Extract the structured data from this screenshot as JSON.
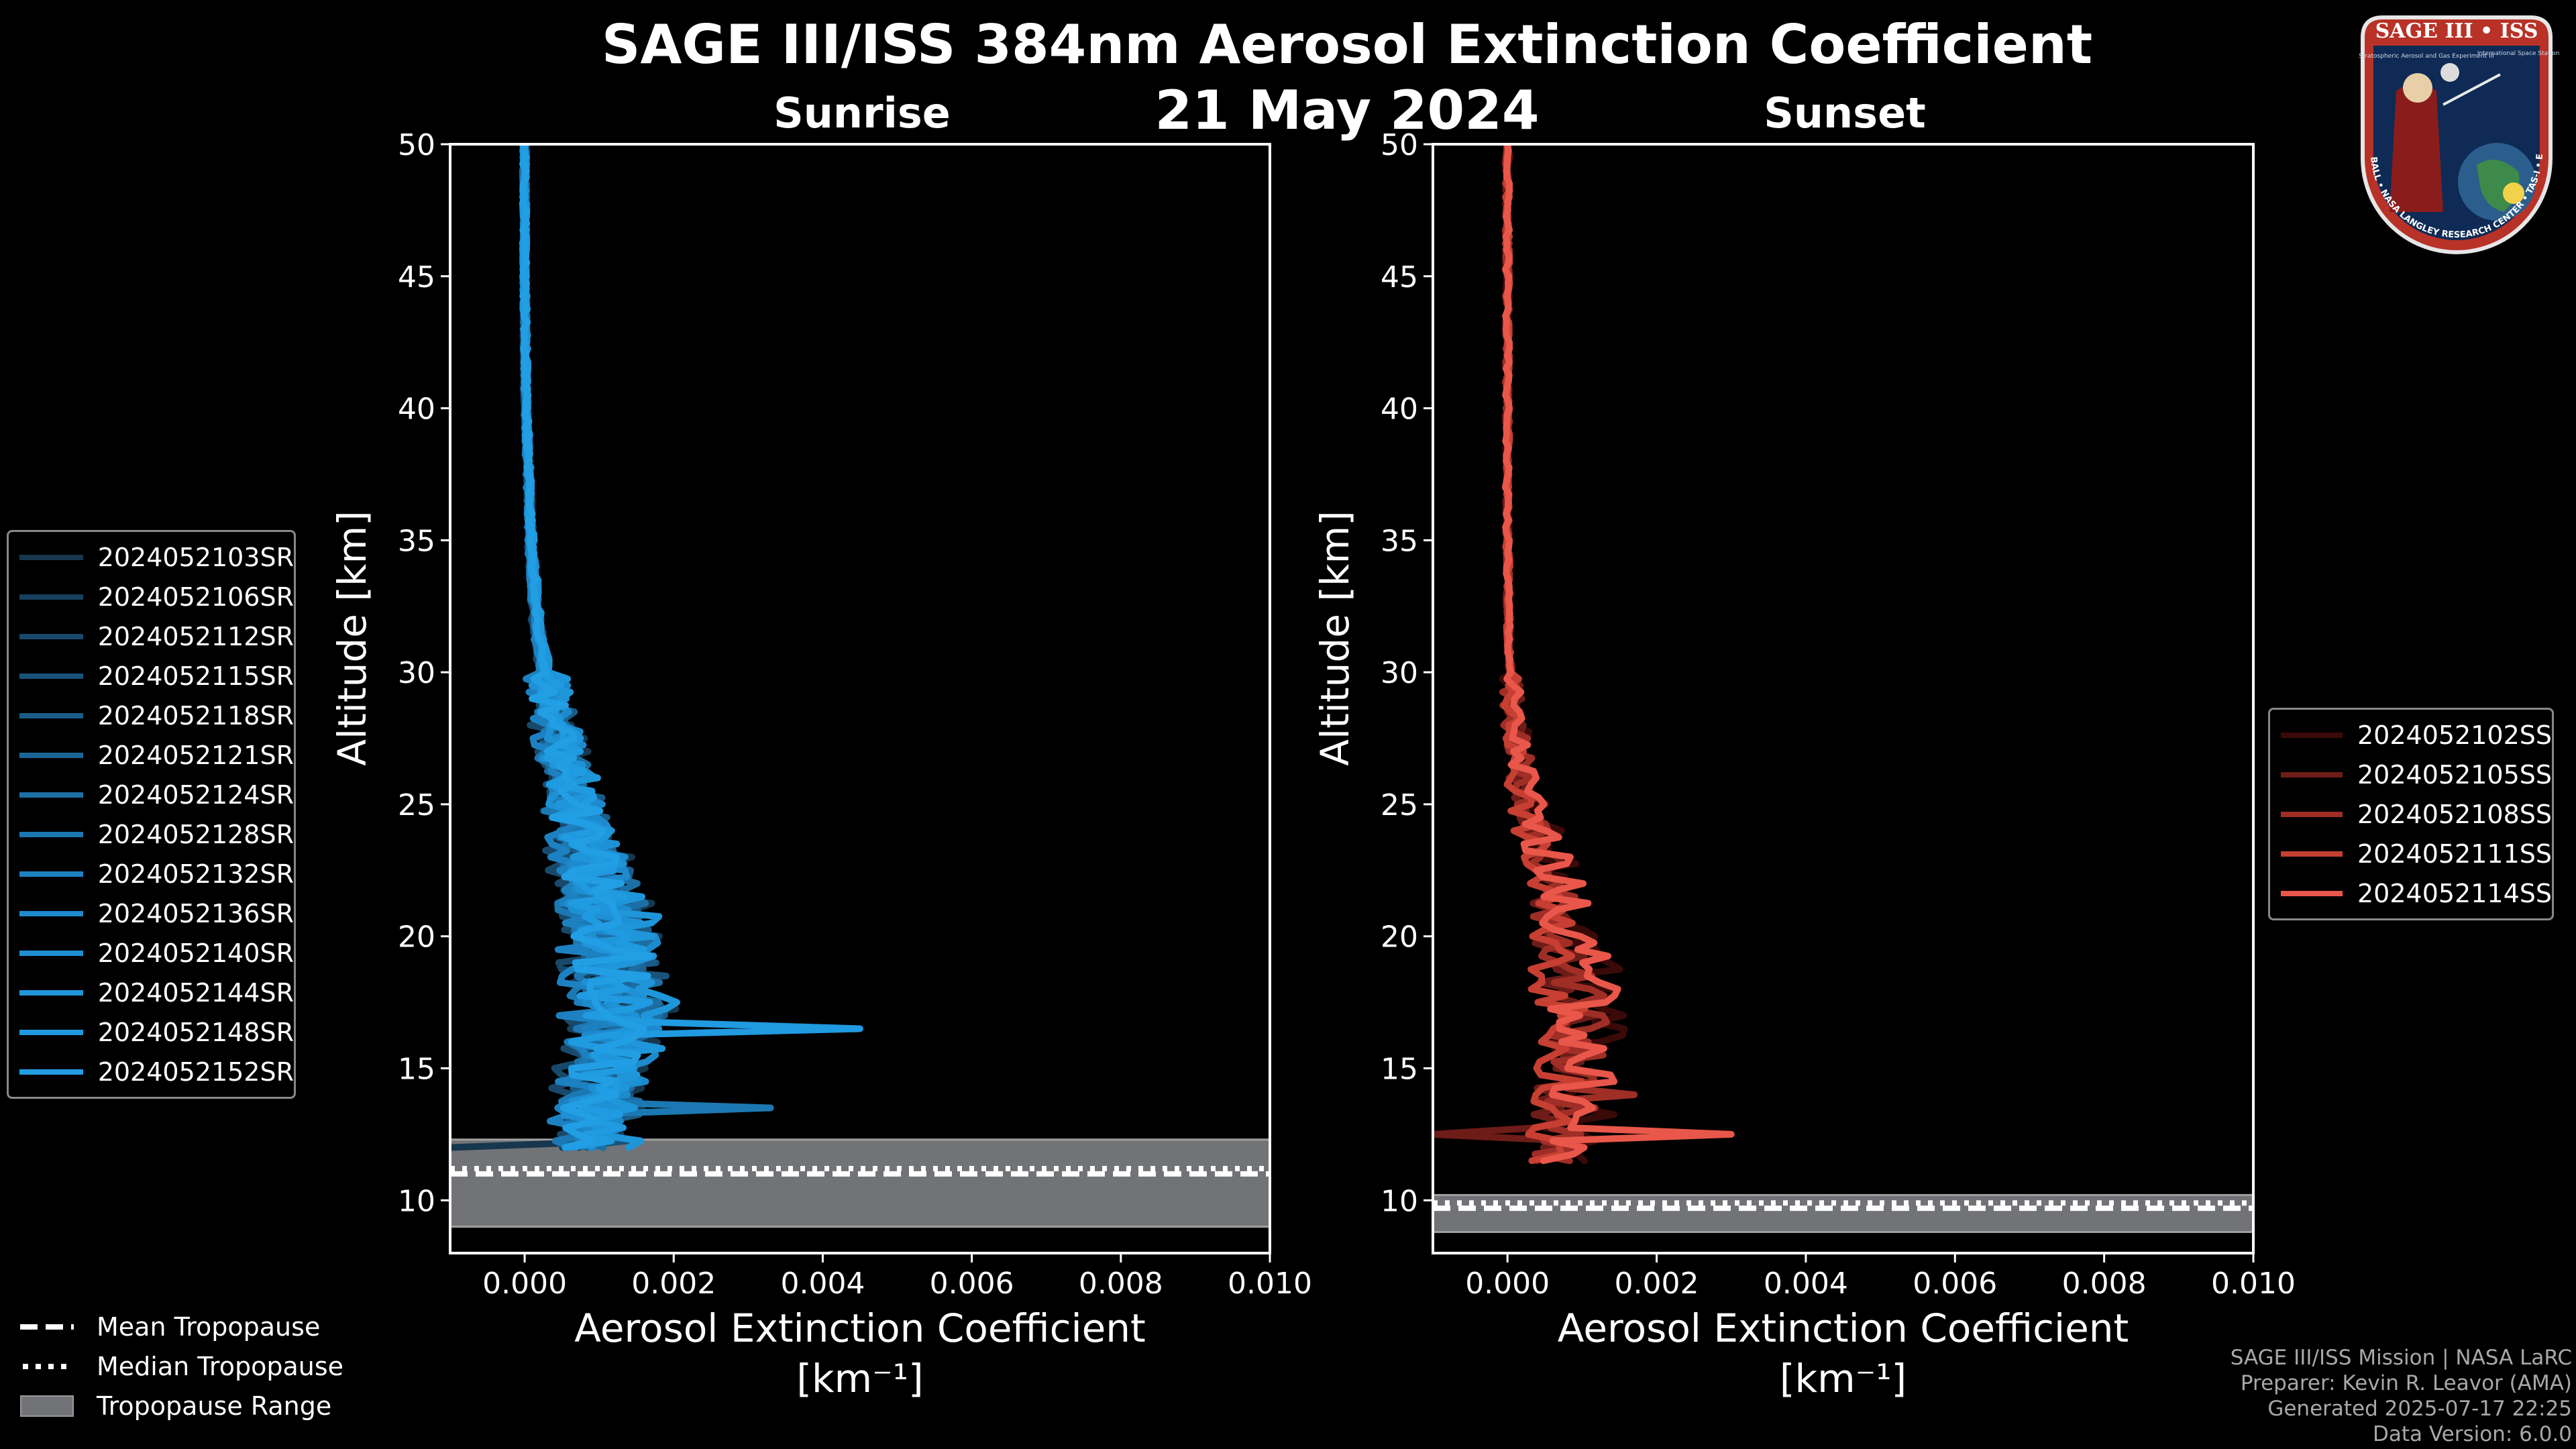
{
  "title_line1": "SAGE III/ISS 384nm Aerosol Extinction Coefficient",
  "title_line2": "21 May 2024",
  "footer": {
    "mission": "SAGE III/ISS Mission | NASA LaRC",
    "preparer": "Preparer: Kevin R. Leavor (AMA)",
    "generated": "Generated 2025-07-17 22:25",
    "version": "Data Version: 6.0.0"
  },
  "logo": {
    "title": "SAGE III • ISS",
    "subtitle": "Stratospheric Aerosol and Gas Experiment III",
    "station": "International Space Station",
    "ring": "BALL • NASA LANGLEY RESEARCH CENTER • TAS-I • ESA"
  },
  "tropopause_legend": [
    {
      "label": "Mean Tropopause",
      "style": "dashed"
    },
    {
      "label": "Median Tropopause",
      "style": "dotted"
    },
    {
      "label": "Tropopause Range",
      "style": "patch"
    }
  ],
  "chart_data": [
    {
      "type": "line",
      "panel": "Sunrise",
      "title": "Sunrise",
      "xlabel": "Aerosol Extinction Coefficient",
      "xlabel_units": "[km⁻¹]",
      "ylabel": "Altitude [km]",
      "xlim": [
        -0.001,
        0.01
      ],
      "ylim": [
        8,
        50
      ],
      "xticks": [
        "0.000",
        "0.002",
        "0.004",
        "0.006",
        "0.008",
        "0.010"
      ],
      "xtick_values": [
        0,
        0.002,
        0.004,
        0.006,
        0.008,
        0.01
      ],
      "yticks": [
        10,
        15,
        20,
        25,
        30,
        35,
        40,
        45,
        50
      ],
      "tropopause": {
        "mean": 11.0,
        "median": 11.2,
        "range": [
          9.0,
          12.3
        ]
      },
      "mean_profile": {
        "altitude": [
          12,
          13,
          14,
          15,
          16,
          17,
          18,
          19,
          20,
          21,
          22,
          23,
          24,
          25,
          26,
          28,
          30,
          32,
          35,
          40,
          45,
          50
        ],
        "value": [
          0.0009,
          0.0009,
          0.00095,
          0.001,
          0.0011,
          0.00115,
          0.0012,
          0.00115,
          0.0011,
          0.001,
          0.00092,
          0.00082,
          0.00072,
          0.00062,
          0.00052,
          0.00038,
          0.00026,
          0.00016,
          8e-05,
          2e-05,
          0.0,
          0.0
        ]
      },
      "spikes": [
        {
          "profile_index": 12,
          "altitude": 16.5,
          "value": 0.0045
        },
        {
          "profile_index": 7,
          "altitude": 13.5,
          "value": 0.0033
        },
        {
          "profile_index": 3,
          "altitude": 18.5,
          "value": 0.0019
        },
        {
          "profile_index": 0,
          "altitude": 12.0,
          "value": -0.001
        }
      ],
      "series": [
        {
          "name": "2024052103SR",
          "color": "#16374e"
        },
        {
          "name": "2024052106SR",
          "color": "#17405c"
        },
        {
          "name": "2024052112SR",
          "color": "#18496b"
        },
        {
          "name": "2024052115SR",
          "color": "#195379"
        },
        {
          "name": "2024052118SR",
          "color": "#1a5c87"
        },
        {
          "name": "2024052121SR",
          "color": "#1b6596"
        },
        {
          "name": "2024052124SR",
          "color": "#1c6fa4"
        },
        {
          "name": "2024052128SR",
          "color": "#1c78b2"
        },
        {
          "name": "2024052132SR",
          "color": "#1d81c1"
        },
        {
          "name": "2024052136SR",
          "color": "#1d8acd"
        },
        {
          "name": "2024052140SR",
          "color": "#1e91d4"
        },
        {
          "name": "2024052144SR",
          "color": "#1f96da"
        },
        {
          "name": "2024052148SR",
          "color": "#209ae0"
        },
        {
          "name": "2024052152SR",
          "color": "#229ee4"
        }
      ]
    },
    {
      "type": "line",
      "panel": "Sunset",
      "title": "Sunset",
      "xlabel": "Aerosol Extinction Coefficient",
      "xlabel_units": "[km⁻¹]",
      "ylabel": "Altitude [km]",
      "xlim": [
        -0.001,
        0.01
      ],
      "ylim": [
        8,
        50
      ],
      "xticks": [
        "0.000",
        "0.002",
        "0.004",
        "0.006",
        "0.008",
        "0.010"
      ],
      "xtick_values": [
        0,
        0.002,
        0.004,
        0.006,
        0.008,
        0.01
      ],
      "yticks": [
        10,
        15,
        20,
        25,
        30,
        35,
        40,
        45,
        50
      ],
      "tropopause": {
        "mean": 9.7,
        "median": 9.9,
        "range": [
          8.8,
          10.2
        ]
      },
      "mean_profile": {
        "altitude": [
          11.5,
          12.5,
          13.5,
          14.5,
          15.5,
          16.5,
          17.5,
          18.5,
          19.5,
          20.5,
          21.5,
          22.5,
          23.5,
          24.5,
          25.5,
          27,
          29,
          31,
          35,
          40,
          45,
          50
        ],
        "value": [
          0.0006,
          0.0007,
          0.0008,
          0.00085,
          0.0009,
          0.0009,
          0.00088,
          0.00085,
          0.0008,
          0.00072,
          0.00062,
          0.00052,
          0.00042,
          0.00032,
          0.00024,
          0.00014,
          6e-05,
          2e-05,
          0.0,
          0.0,
          0.0,
          0.0
        ]
      },
      "spikes": [
        {
          "profile_index": 4,
          "altitude": 12.6,
          "value": 0.003
        },
        {
          "profile_index": 1,
          "altitude": 12.6,
          "value": -0.001
        },
        {
          "profile_index": 2,
          "altitude": 14.0,
          "value": 0.0017
        }
      ],
      "series": [
        {
          "name": "2024052102SS",
          "color": "#3a0a09"
        },
        {
          "name": "2024052105SS",
          "color": "#6e1c18"
        },
        {
          "name": "2024052108SS",
          "color": "#9e2e26"
        },
        {
          "name": "2024052111SS",
          "color": "#c63f32"
        },
        {
          "name": "2024052114SS",
          "color": "#e8574a"
        }
      ]
    }
  ]
}
